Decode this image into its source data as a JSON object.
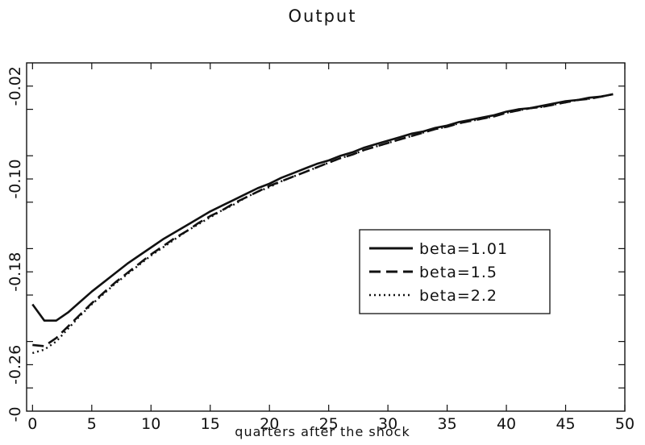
{
  "chart_data": {
    "type": "line",
    "title": "Output",
    "xlabel": "quarters after the shock",
    "ylabel": "",
    "xlim": [
      -0.5,
      50
    ],
    "ylim": [
      -0.3,
      -0.0
    ],
    "x_ticks": [
      0,
      5,
      10,
      15,
      20,
      25,
      30,
      35,
      40,
      45,
      50
    ],
    "x_tick_labels": [
      "0",
      "5",
      "10",
      "15",
      "20",
      "25",
      "30",
      "35",
      "40",
      "45",
      "50"
    ],
    "y_tick_labels": [
      {
        "y": -0.02,
        "label": "-0.02"
      },
      {
        "y": -0.1,
        "label": "-0.10"
      },
      {
        "y": -0.18,
        "label": "-0.18"
      },
      {
        "y": -0.26,
        "label": "-0.26"
      }
    ],
    "y_minor_ticks": [
      -0.04,
      -0.08,
      -0.12,
      -0.16,
      -0.2,
      -0.24,
      -0.28
    ],
    "x": [
      0,
      1,
      2,
      3,
      4,
      5,
      6,
      7,
      8,
      9,
      10,
      11,
      12,
      13,
      14,
      15,
      16,
      17,
      18,
      19,
      20,
      21,
      22,
      23,
      24,
      25,
      26,
      27,
      28,
      29,
      30,
      31,
      32,
      33,
      34,
      35,
      36,
      37,
      38,
      39,
      40,
      41,
      42,
      43,
      44,
      45,
      46,
      47,
      48,
      49
    ],
    "series": [
      {
        "name": "beta=1.01",
        "dash": "solid",
        "values": [
          -0.208,
          -0.222,
          -0.222,
          -0.215,
          -0.206,
          -0.197,
          -0.189,
          -0.181,
          -0.173,
          -0.166,
          -0.159,
          -0.152,
          -0.146,
          -0.14,
          -0.134,
          -0.128,
          -0.123,
          -0.118,
          -0.113,
          -0.108,
          -0.104,
          -0.099,
          -0.095,
          -0.091,
          -0.087,
          -0.084,
          -0.08,
          -0.077,
          -0.073,
          -0.07,
          -0.067,
          -0.064,
          -0.061,
          -0.059,
          -0.056,
          -0.054,
          -0.051,
          -0.049,
          -0.047,
          -0.045,
          -0.042,
          -0.04,
          -0.039,
          -0.037,
          -0.035,
          -0.033,
          -0.032,
          -0.03,
          -0.029,
          -0.027
        ]
      },
      {
        "name": "beta=1.5",
        "dash": "dash",
        "values": [
          -0.243,
          -0.244,
          -0.237,
          -0.227,
          -0.217,
          -0.207,
          -0.198,
          -0.189,
          -0.181,
          -0.173,
          -0.165,
          -0.158,
          -0.151,
          -0.145,
          -0.138,
          -0.132,
          -0.127,
          -0.121,
          -0.116,
          -0.111,
          -0.106,
          -0.102,
          -0.098,
          -0.094,
          -0.09,
          -0.086,
          -0.082,
          -0.079,
          -0.075,
          -0.072,
          -0.069,
          -0.066,
          -0.063,
          -0.06,
          -0.057,
          -0.055,
          -0.052,
          -0.05,
          -0.048,
          -0.046,
          -0.043,
          -0.041,
          -0.039,
          -0.038,
          -0.036,
          -0.034,
          -0.032,
          -0.031,
          -0.029,
          -0.027
        ]
      },
      {
        "name": "beta=2.2",
        "dash": "dot",
        "values": [
          -0.25,
          -0.247,
          -0.24,
          -0.229,
          -0.218,
          -0.208,
          -0.199,
          -0.19,
          -0.182,
          -0.174,
          -0.166,
          -0.159,
          -0.152,
          -0.145,
          -0.139,
          -0.133,
          -0.127,
          -0.122,
          -0.116,
          -0.111,
          -0.107,
          -0.102,
          -0.098,
          -0.094,
          -0.09,
          -0.086,
          -0.082,
          -0.079,
          -0.075,
          -0.072,
          -0.069,
          -0.066,
          -0.063,
          -0.06,
          -0.057,
          -0.055,
          -0.052,
          -0.05,
          -0.048,
          -0.046,
          -0.043,
          -0.041,
          -0.039,
          -0.038,
          -0.036,
          -0.034,
          -0.032,
          -0.031,
          -0.029,
          -0.027
        ]
      }
    ],
    "legend_position": "lower-right",
    "grid": false
  }
}
